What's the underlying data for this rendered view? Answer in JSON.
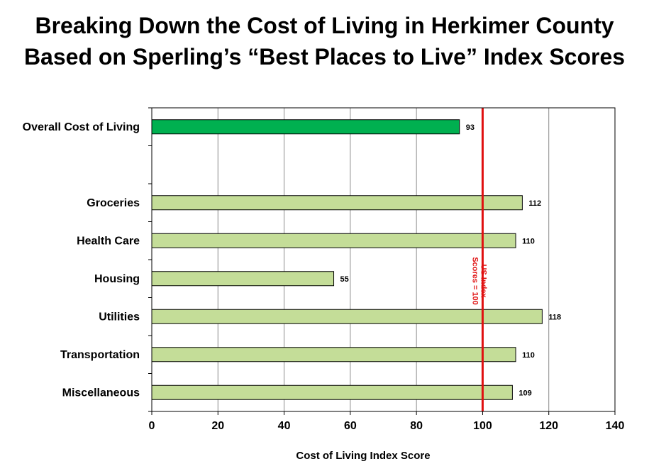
{
  "chart_data": {
    "type": "bar",
    "orientation": "horizontal",
    "title_lines": [
      "Breaking Down the Cost of Living in Herkimer County",
      "Based on Sperling’s “Best Places to Live” Index Scores"
    ],
    "categories": [
      "Overall Cost of Living",
      "",
      "Groceries",
      "Health Care",
      "Housing",
      "Utilities",
      "Transportation",
      "Miscellaneous"
    ],
    "values": [
      93,
      null,
      112,
      110,
      55,
      118,
      110,
      109
    ],
    "bar_colors": [
      "#00b050",
      null,
      "#c4dd98",
      "#c4dd98",
      "#c4dd98",
      "#c4dd98",
      "#c4dd98",
      "#c4dd98"
    ],
    "xlabel": "Cost of Living Index Score",
    "ylabel": "",
    "xlim": [
      0,
      140
    ],
    "x_ticks": [
      0,
      20,
      40,
      60,
      80,
      100,
      120,
      140
    ],
    "grid": true,
    "reference_line": {
      "value": 100,
      "label_lines": [
        "US Index",
        "Scores = 100"
      ],
      "color": "#e01010"
    }
  }
}
